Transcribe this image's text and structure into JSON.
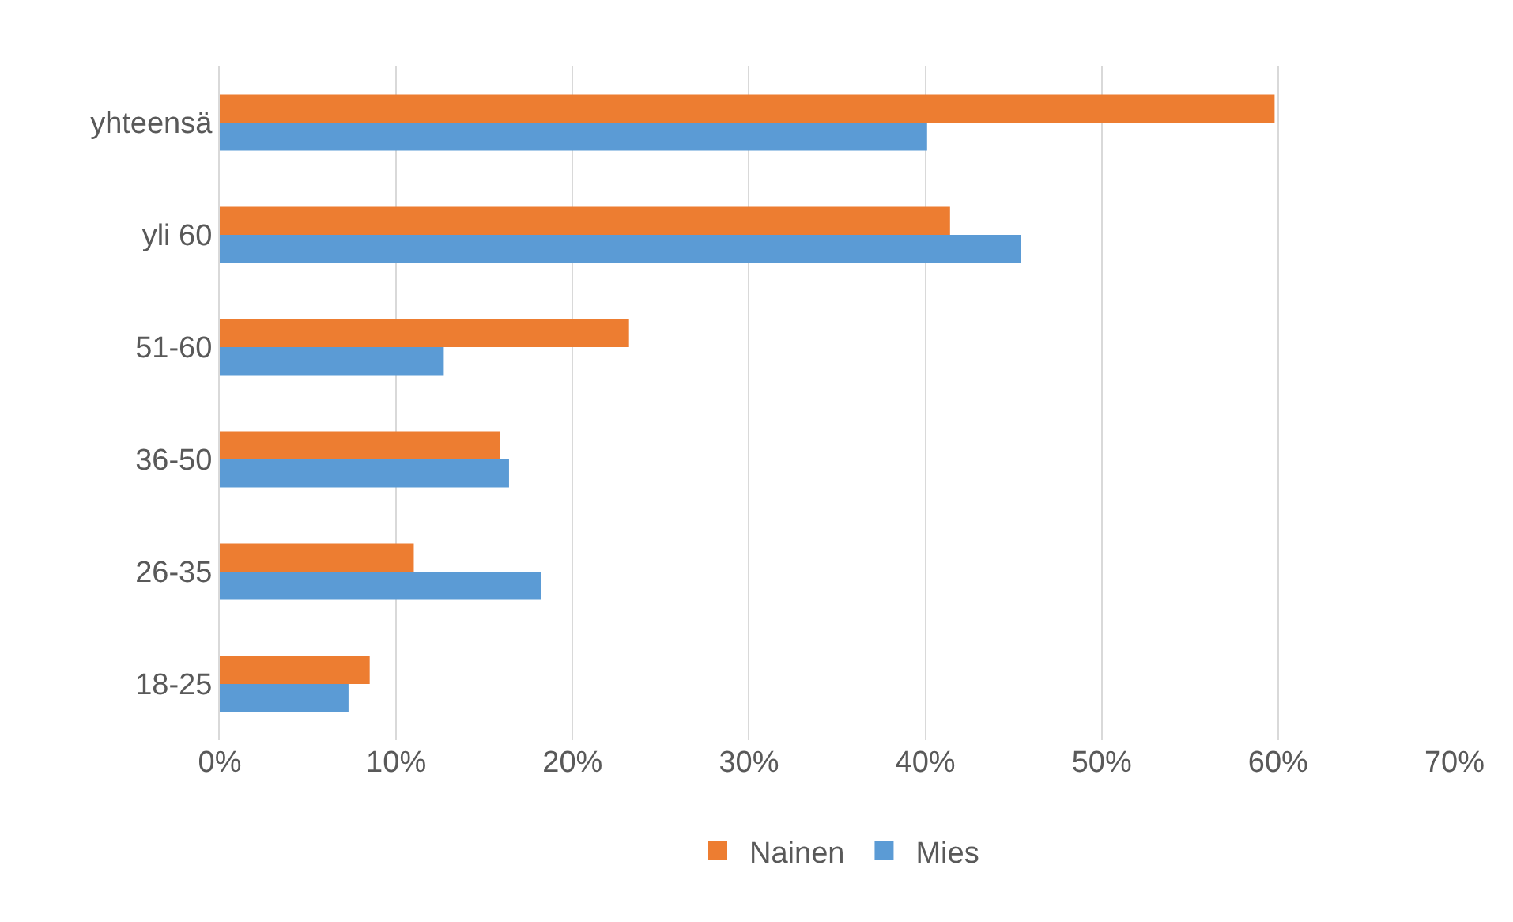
{
  "chart_data": {
    "type": "bar",
    "orientation": "horizontal",
    "categories": [
      "yhteensä",
      "yli 60",
      "51-60",
      "36-50",
      "26-35",
      "18-25"
    ],
    "series": [
      {
        "name": "Nainen",
        "color": "#ed7d31",
        "values": [
          59.8,
          41.4,
          23.2,
          15.9,
          11.0,
          8.5
        ]
      },
      {
        "name": "Mies",
        "color": "#5b9bd5",
        "values": [
          40.1,
          45.4,
          12.7,
          16.4,
          18.2,
          7.3
        ]
      }
    ],
    "xlim": [
      0,
      70
    ],
    "xticks": [
      {
        "value": 0,
        "label": "0%"
      },
      {
        "value": 10,
        "label": "10%"
      },
      {
        "value": 20,
        "label": "20%"
      },
      {
        "value": 30,
        "label": "30%"
      },
      {
        "value": 40,
        "label": "40%"
      },
      {
        "value": 50,
        "label": "50%"
      },
      {
        "value": 60,
        "label": "60%"
      },
      {
        "value": 70,
        "label": "70%"
      }
    ],
    "grid": "x",
    "legend": "bottom"
  }
}
